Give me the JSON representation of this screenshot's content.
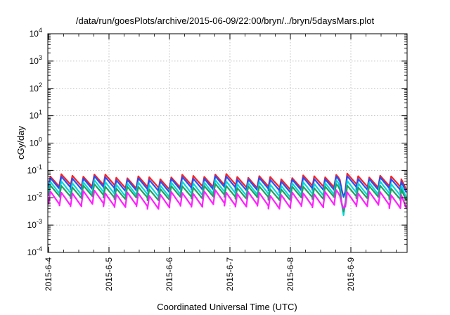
{
  "chart_data": {
    "type": "line",
    "title": "/data/run/goesPlots/archive/2015-06-09/22:00/bryn/../bryn/5daysMars.plot",
    "xlabel": "Coordinated Universal Time (UTC)",
    "ylabel": "cGy/day",
    "yscale": "log",
    "ylim": [
      0.0001,
      10000
    ],
    "xlim": [
      "2015-06-04 00:00",
      "2015-06-09 22:00"
    ],
    "grid": true,
    "legend": "none",
    "x_tick_labels": [
      "2015-6-4",
      "2015-6-5",
      "2015-6-6",
      "2015-6-7",
      "2015-6-8",
      "2015-6-9"
    ],
    "y_tick_labels": [
      {
        "base": "10",
        "exp": "-4"
      },
      {
        "base": "10",
        "exp": "-3"
      },
      {
        "base": "10",
        "exp": "-2"
      },
      {
        "base": "10",
        "exp": "-1"
      },
      {
        "base": "10",
        "exp": "0"
      },
      {
        "base": "10",
        "exp": "1"
      },
      {
        "base": "10",
        "exp": "2"
      },
      {
        "base": "10",
        "exp": "3"
      },
      {
        "base": "10",
        "exp": "4"
      }
    ],
    "series": [
      {
        "color": "#ff2020",
        "peak": 0.06,
        "trough": 0.025
      },
      {
        "color": "#2050ff",
        "peak": 0.05,
        "trough": 0.02
      },
      {
        "color": "#00d8d8",
        "peak": 0.035,
        "trough": 0.013
      },
      {
        "color": "#20a060",
        "peak": 0.025,
        "trough": 0.01
      },
      {
        "color": "#ff20ff",
        "peak": 0.015,
        "trough": 0.005
      }
    ],
    "dip_time": "2015-06-08 21:00",
    "dip_min": 0.001
  }
}
